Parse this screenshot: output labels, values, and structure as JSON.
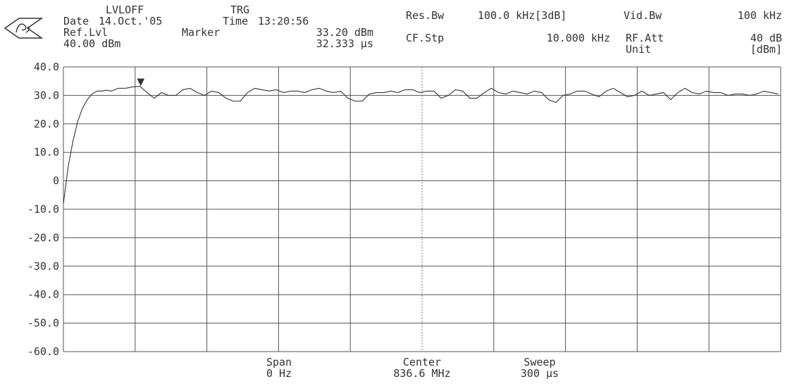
{
  "header": {
    "lvloff": "LVLOFF",
    "trg": "TRG",
    "date_label": "Date",
    "date_value": "14.Oct.'05",
    "time_label": "Time",
    "time_value": "13:20:56",
    "ref_lvl_label": "Ref.Lvl",
    "ref_lvl_value": "40.00 dBm",
    "marker_label": "Marker",
    "marker_level": "33.20 dBm",
    "marker_time": "32.333 µs",
    "res_bw_label": "Res.Bw",
    "res_bw_value": "100.0 kHz[3dB]",
    "vid_bw_label": "Vid.Bw",
    "vid_bw_value": "100 kHz",
    "cf_stp_label": "CF.Stp",
    "cf_stp_value": "10.000 kHz",
    "rf_att_label": "RF.Att",
    "rf_att_value": "40 dB",
    "unit_label": "Unit",
    "unit_value": "[dBm]"
  },
  "footer": {
    "span_label": "Span",
    "span_value": "0 Hz",
    "center_label": "Center",
    "center_value": "836.6 MHz",
    "sweep_label": "Sweep",
    "sweep_value": "300 µs"
  },
  "colors": {
    "trace": "#333333",
    "grid": "#555555",
    "background": "#ffffff"
  },
  "chart_data": {
    "type": "line",
    "title": "",
    "xlabel": "",
    "ylabel": "",
    "ylim": [
      -60,
      40
    ],
    "xlim": [
      0,
      300
    ],
    "x_unit": "µs",
    "y_unit": "dBm",
    "yticks": [
      "40.0",
      "30.0",
      "20.0",
      "10.0",
      "0",
      "-10.0",
      "-20.0",
      "-30.0",
      "-40.0",
      "-50.0",
      "-60.0"
    ],
    "grid": true,
    "center_line": "dotted",
    "marker": {
      "x": 32.333,
      "y": 33.2,
      "symbol": "▼"
    },
    "series": [
      {
        "x": [
          0,
          2,
          4,
          6,
          8,
          10,
          12,
          14,
          16,
          18,
          20,
          23,
          26,
          29,
          32,
          35,
          38,
          41,
          44,
          47,
          50,
          53,
          56,
          59,
          62,
          65,
          68,
          71,
          74,
          77,
          80,
          83,
          86,
          89,
          92,
          95,
          98,
          101,
          104,
          107,
          110,
          113,
          116,
          119,
          122,
          125,
          128,
          131,
          134,
          137,
          140,
          143,
          146,
          149,
          152,
          155,
          158,
          161,
          164,
          167,
          170,
          173,
          176,
          179,
          182,
          185,
          188,
          191,
          194,
          197,
          200,
          203,
          206,
          209,
          212,
          215,
          218,
          221,
          224,
          227,
          230,
          233,
          236,
          239,
          242,
          245,
          248,
          251,
          254,
          257,
          260,
          263,
          266,
          269,
          272,
          275,
          278,
          281,
          284,
          287,
          290,
          293,
          296,
          299
        ],
        "y": [
          -8,
          5,
          14,
          21,
          25.5,
          28.5,
          30.5,
          31.5,
          31.5,
          31.8,
          31.5,
          32.5,
          32.5,
          33,
          33.2,
          31,
          29,
          31,
          30,
          30,
          32,
          32.5,
          31,
          30,
          31.5,
          31,
          29,
          28,
          28,
          31,
          32.5,
          32,
          31.5,
          32,
          31,
          31.5,
          31.5,
          31,
          32,
          32.5,
          31.5,
          31,
          31.5,
          29,
          28,
          28,
          30.5,
          31,
          31,
          31.5,
          31,
          32,
          32,
          31,
          31.5,
          31.5,
          29,
          30,
          32,
          31.5,
          29,
          29,
          31,
          32.5,
          31,
          30.5,
          31.5,
          31,
          30.5,
          31.5,
          31,
          28.5,
          27.5,
          30,
          30.5,
          31.5,
          31.5,
          30.5,
          29.5,
          31.5,
          32.5,
          31,
          29.5,
          30,
          31.5,
          30,
          30.5,
          31,
          28.5,
          31,
          32.5,
          31,
          30.5,
          31.5,
          31,
          31,
          30,
          30.5,
          30.5,
          30,
          30.5,
          31.5,
          31,
          30.5
        ]
      }
    ]
  }
}
